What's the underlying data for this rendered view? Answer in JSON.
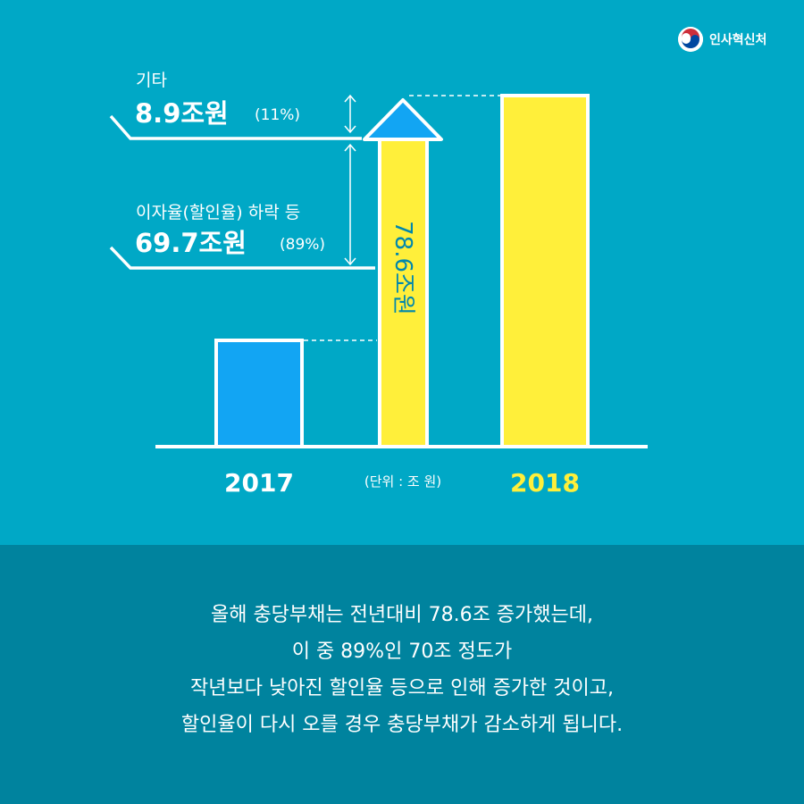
{
  "logo": {
    "text": "인사혁신처",
    "icon": "taegeuk-emblem-icon"
  },
  "colors": {
    "background": "#00a8c6",
    "caption_band": "#00839e",
    "bar_2017": "#12a5f3",
    "bar_2018": "#ffef3a",
    "arrow_head": "#12a5f3",
    "year_2018": "#ffef3a",
    "outline": "#ffffff",
    "rotated_label": "#0087ad"
  },
  "annotations": {
    "other": {
      "label": "기타",
      "value": "8.9조원",
      "pct": "(11%)"
    },
    "interest": {
      "label": "이자율(할인율) 하락 등",
      "value": "69.7조원",
      "pct": "(89%)"
    },
    "increase": {
      "label": "78.6조원"
    },
    "unit_note": "(단위 : 조 원)"
  },
  "chart_data": {
    "type": "bar",
    "categories": [
      "2017",
      "2018"
    ],
    "values": [
      null,
      null
    ],
    "increase": 78.6,
    "components": [
      {
        "name": "이자율(할인율) 하락 등",
        "value": 69.7,
        "share_pct": 89
      },
      {
        "name": "기타",
        "value": 8.9,
        "share_pct": 11
      }
    ],
    "unit": "(단위 : 조 원)",
    "grid": false,
    "legend": "none"
  },
  "caption": {
    "lines": [
      "올해 충당부채는 전년대비 78.6조 증가했는데,",
      "이 중 89%인 70조 정도가",
      "작년보다 낮아진 할인율 등으로 인해 증가한 것이고,",
      "할인율이 다시 오를 경우 충당부채가 감소하게 됩니다."
    ]
  }
}
